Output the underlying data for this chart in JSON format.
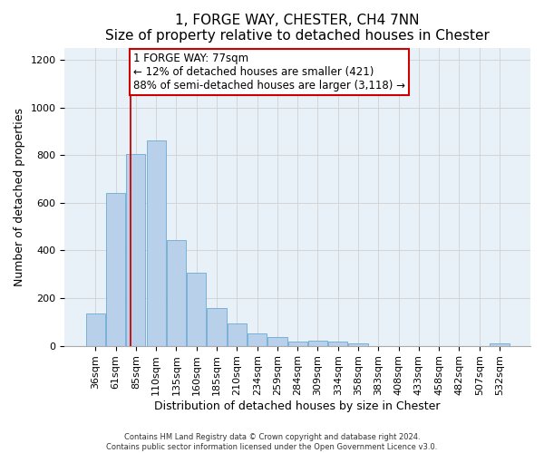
{
  "title": "1, FORGE WAY, CHESTER, CH4 7NN",
  "subtitle": "Size of property relative to detached houses in Chester",
  "xlabel": "Distribution of detached houses by size in Chester",
  "ylabel": "Number of detached properties",
  "footer_line1": "Contains HM Land Registry data © Crown copyright and database right 2024.",
  "footer_line2": "Contains public sector information licensed under the Open Government Licence v3.0.",
  "categories": [
    "36sqm",
    "61sqm",
    "85sqm",
    "110sqm",
    "135sqm",
    "160sqm",
    "185sqm",
    "210sqm",
    "234sqm",
    "259sqm",
    "284sqm",
    "309sqm",
    "334sqm",
    "358sqm",
    "383sqm",
    "408sqm",
    "433sqm",
    "458sqm",
    "482sqm",
    "507sqm",
    "532sqm"
  ],
  "values": [
    135,
    640,
    805,
    860,
    445,
    305,
    158,
    95,
    50,
    37,
    18,
    20,
    18,
    10,
    0,
    0,
    0,
    0,
    0,
    0,
    10
  ],
  "bar_color": "#b8d0ea",
  "bar_edge_color": "#6aaad4",
  "background_color": "#ffffff",
  "grid_color": "#d0d0d0",
  "annotation_line1": "1 FORGE WAY: 77sqm",
  "annotation_line2": "← 12% of detached houses are smaller (421)",
  "annotation_line3": "88% of semi-detached houses are larger (3,118) →",
  "vline_position": 1.72,
  "vline_color": "#cc0000",
  "annotation_box_color": "#cc0000",
  "ylim": [
    0,
    1250
  ],
  "yticks": [
    0,
    200,
    400,
    600,
    800,
    1000,
    1200
  ],
  "title_fontsize": 11,
  "annotation_fontsize": 8.5,
  "ylabel_fontsize": 9,
  "xlabel_fontsize": 9,
  "tick_fontsize": 8,
  "footer_fontsize": 6
}
